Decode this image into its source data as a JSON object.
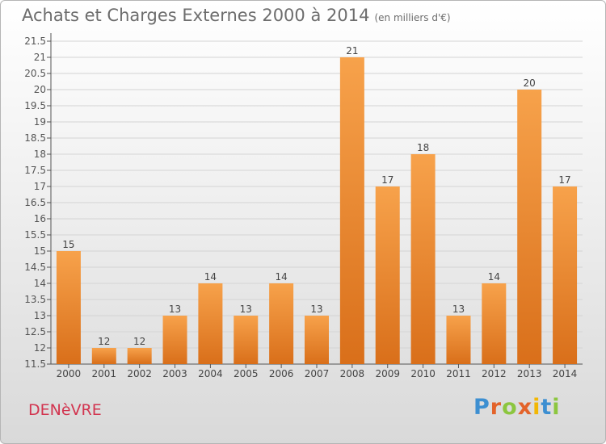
{
  "header": {
    "title": "Achats et Charges Externes 2000 à 2014",
    "subtitle": "(en milliers d'€)"
  },
  "footer": {
    "place": "DENèVRE",
    "logo": "Proxiti"
  },
  "colors": {
    "bar_light": "#f7a24b",
    "bar_dark": "#d96f1a",
    "axis": "#555555",
    "grid": "#d4d4d4",
    "place": "#d2344f"
  },
  "chart_data": {
    "type": "bar",
    "categories": [
      "2000",
      "2001",
      "2002",
      "2003",
      "2004",
      "2005",
      "2006",
      "2007",
      "2008",
      "2009",
      "2010",
      "2011",
      "2012",
      "2013",
      "2014"
    ],
    "values": [
      15,
      12,
      12,
      13,
      14,
      13,
      14,
      13,
      21,
      17,
      18,
      13,
      14,
      20,
      17
    ],
    "data_labels": [
      "15",
      "12",
      "12",
      "13",
      "14",
      "13",
      "14",
      "13",
      "21",
      "17",
      "18",
      "13",
      "14",
      "20",
      "17"
    ],
    "yticks": [
      "11.5",
      "12",
      "12.5",
      "13",
      "13.5",
      "14",
      "14.5",
      "15",
      "15.5",
      "16",
      "16.5",
      "17",
      "17.5",
      "18",
      "18.5",
      "19",
      "19.5",
      "20",
      "20.5",
      "21",
      "21.5"
    ],
    "ylim": [
      11.5,
      21.5
    ],
    "xlabel": "",
    "ylabel": "",
    "grid": true
  }
}
